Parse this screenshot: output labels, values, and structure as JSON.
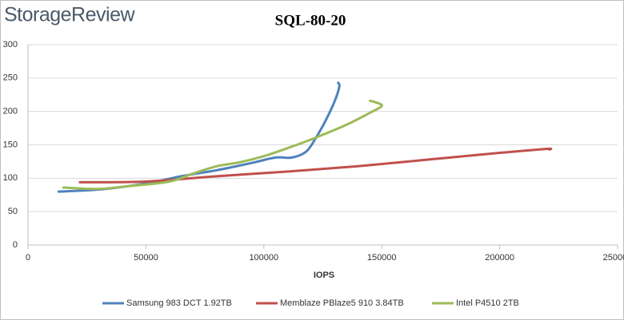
{
  "chart_data": {
    "type": "line",
    "brand": "StorageReview",
    "title": "SQL-80-20",
    "x_label": "IOPS",
    "xlim": [
      0,
      250000
    ],
    "xticks": [
      0,
      50000,
      100000,
      150000,
      200000,
      250000
    ],
    "ylim": [
      0,
      300
    ],
    "yticks": [
      0,
      50,
      100,
      150,
      200,
      250,
      300
    ],
    "grid": true,
    "legend": "bottom",
    "series": [
      {
        "name": "Samsung 983 DCT 1.92TB",
        "color": "#4f81bd",
        "x": [
          13000,
          30000,
          50000,
          65000,
          80000,
          95000,
          105000,
          112000,
          118000,
          122000,
          126000,
          130000,
          132000,
          131500
        ],
        "values": [
          80,
          83,
          92,
          103,
          112,
          123,
          131,
          131,
          140,
          160,
          185,
          215,
          237,
          243
        ]
      },
      {
        "name": "Memblaze PBlaze5 910 3.84TB",
        "color": "#c0504d",
        "x": [
          22000,
          50000,
          80000,
          110000,
          140000,
          170000,
          200000,
          220000,
          221000
        ],
        "values": [
          94,
          95,
          103,
          110,
          118,
          128,
          138,
          144,
          143
        ]
      },
      {
        "name": "Intel P4510 2TB",
        "color": "#9bbb59",
        "x": [
          15000,
          30000,
          45000,
          60000,
          70000,
          80000,
          90000,
          100000,
          110000,
          120000,
          135000,
          145000,
          150000,
          148000,
          145000
        ],
        "values": [
          86,
          84,
          89,
          95,
          107,
          118,
          124,
          133,
          145,
          158,
          180,
          198,
          208,
          213,
          216
        ]
      }
    ]
  }
}
